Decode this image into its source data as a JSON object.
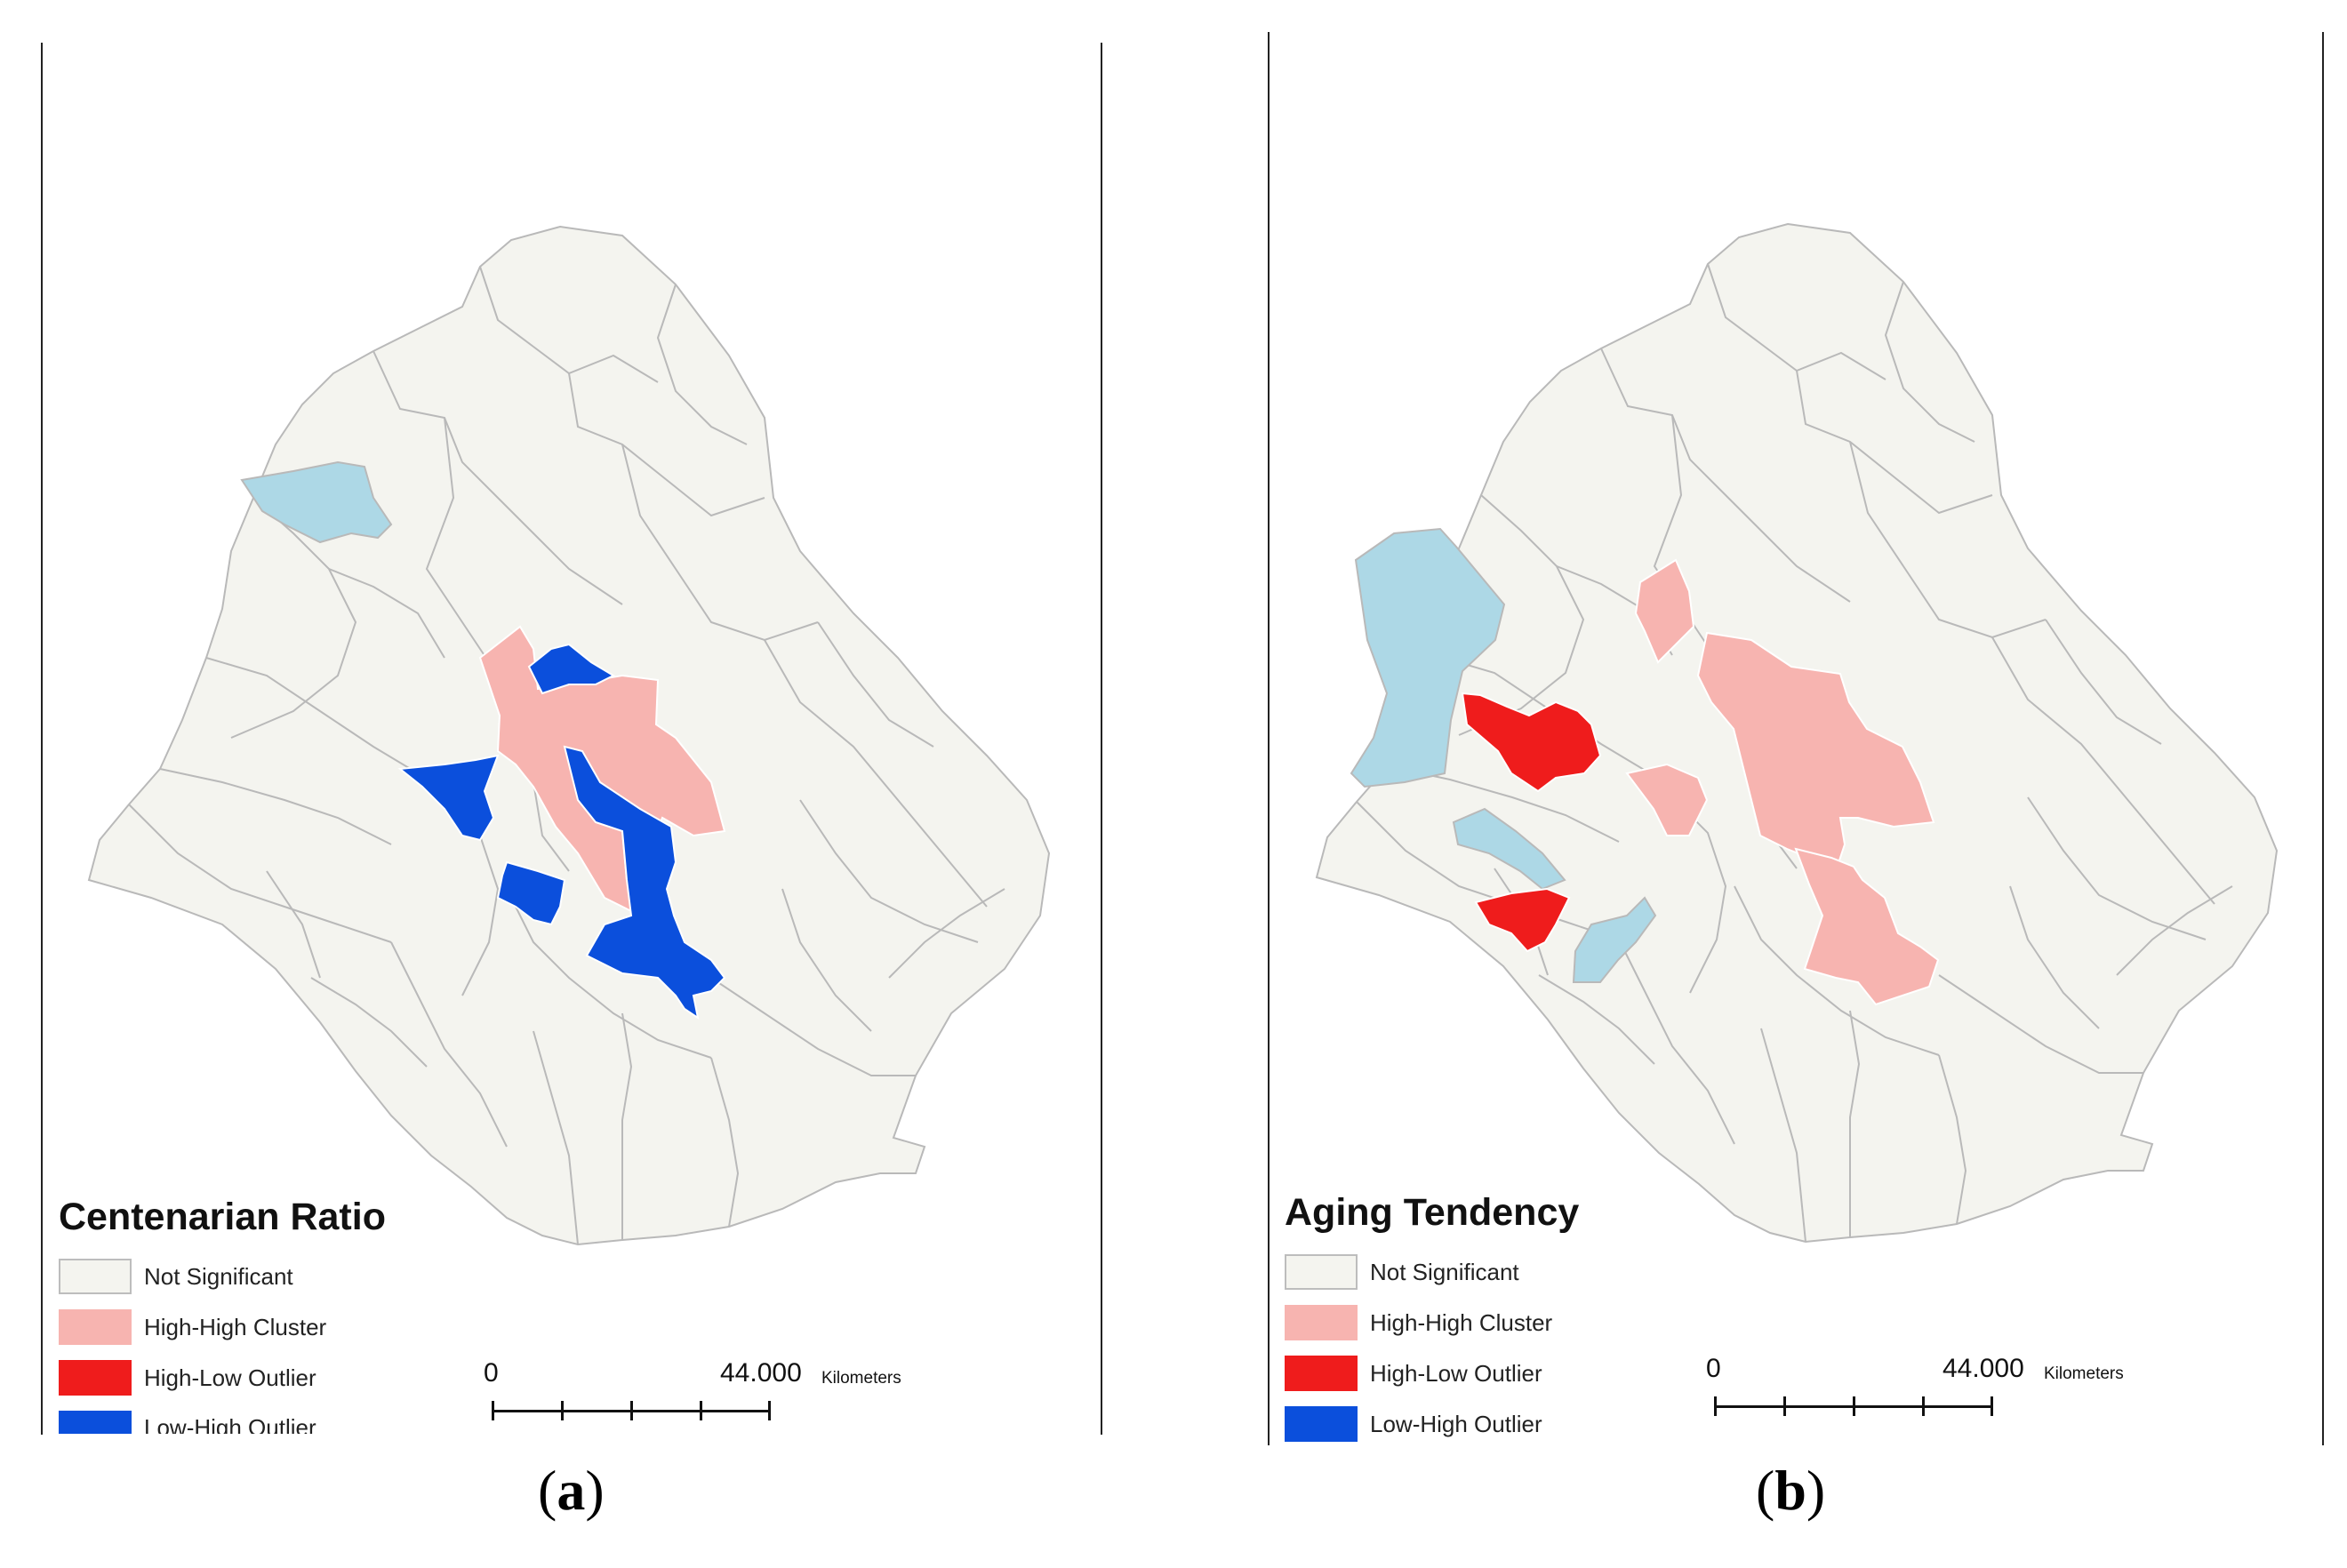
{
  "colors": {
    "not_significant": "#f4f4ef",
    "high_high_cluster": "#f7b4b0",
    "high_low_outlier": "#ef1c1c",
    "low_high_outlier": "#0b4fdc",
    "low_low_cluster": "#add8e6",
    "boundary": "#b9b9b9"
  },
  "panels": [
    {
      "id": "a",
      "legend": {
        "title": "Centenarian Ratio",
        "items": [
          {
            "label": "Not Significant",
            "color": "#f4f4ef"
          },
          {
            "label": "High-High Cluster",
            "color": "#f7b4b0"
          },
          {
            "label": "High-Low Outlier",
            "color": "#ef1c1c"
          },
          {
            "label": "Low-High Outlier",
            "color": "#0b4fdc"
          }
        ]
      },
      "scale": {
        "start": "0",
        "end": "44.000",
        "unit": "Kilometers"
      },
      "caption": {
        "open": "(",
        "letter": "a",
        "close": ")"
      }
    },
    {
      "id": "b",
      "legend": {
        "title": "Aging Tendency",
        "items": [
          {
            "label": "Not Significant",
            "color": "#f4f4ef"
          },
          {
            "label": "High-High Cluster",
            "color": "#f7b4b0"
          },
          {
            "label": "High-Low Outlier",
            "color": "#ef1c1c"
          },
          {
            "label": "Low-High Outlier",
            "color": "#0b4fdc"
          }
        ]
      },
      "scale": {
        "start": "0",
        "end": "44.000",
        "unit": "Kilometers"
      },
      "caption": {
        "open": "(",
        "letter": "b",
        "close": ")"
      }
    }
  ]
}
